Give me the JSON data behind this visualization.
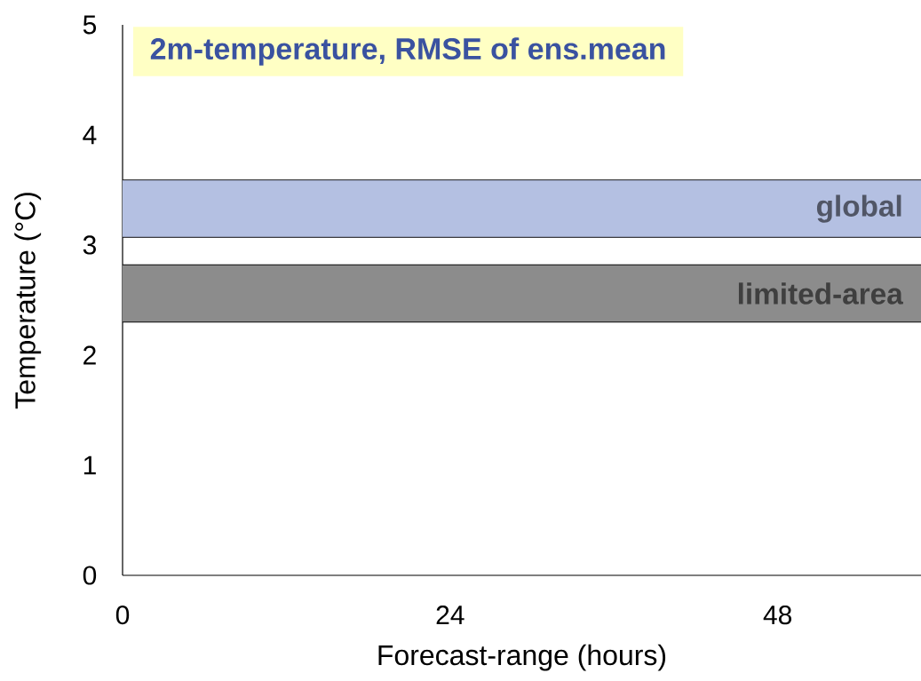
{
  "chart_data": {
    "type": "line",
    "title": "2m-temperature, RMSE of ens.mean",
    "xlabel": "Forecast-range (hours)",
    "ylabel": "Temperature (°C)",
    "xlim": [
      0,
      58.5
    ],
    "xticks": [
      0,
      24,
      48
    ],
    "ylim": [
      0,
      5
    ],
    "yticks": [
      0,
      1,
      2,
      3,
      4,
      5
    ],
    "bands": [
      {
        "axis": "y",
        "from": 3.07,
        "to": 3.59,
        "label": "global",
        "color": "#b4c0e2"
      },
      {
        "axis": "y",
        "from": 2.3,
        "to": 2.82,
        "label": "limited-area",
        "color": "#8c8c8c"
      }
    ]
  }
}
